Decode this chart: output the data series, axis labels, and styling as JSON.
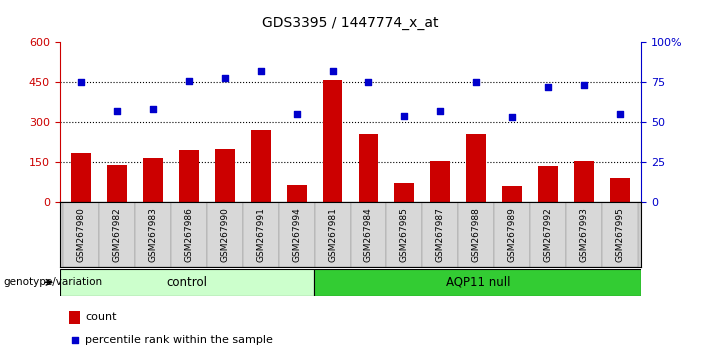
{
  "title": "GDS3395 / 1447774_x_at",
  "samples": [
    "GSM267980",
    "GSM267982",
    "GSM267983",
    "GSM267986",
    "GSM267990",
    "GSM267991",
    "GSM267994",
    "GSM267981",
    "GSM267984",
    "GSM267985",
    "GSM267987",
    "GSM267988",
    "GSM267989",
    "GSM267992",
    "GSM267993",
    "GSM267995"
  ],
  "counts": [
    185,
    138,
    165,
    195,
    200,
    270,
    65,
    460,
    255,
    70,
    155,
    255,
    60,
    135,
    155,
    90
  ],
  "percentile_ranks": [
    75,
    57,
    58,
    76,
    78,
    82,
    55,
    82,
    75,
    54,
    57,
    75,
    53,
    72,
    73,
    55
  ],
  "group_labels": [
    "control",
    "AQP11 null"
  ],
  "group_control_count": 7,
  "group_aqp_count": 9,
  "bar_color": "#cc0000",
  "dot_color": "#0000cc",
  "control_bg": "#ccffcc",
  "aqp_bg": "#33cc33",
  "yticks_left": [
    0,
    150,
    300,
    450,
    600
  ],
  "yticks_right": [
    0,
    25,
    50,
    75,
    100
  ],
  "ylim_left": [
    0,
    600
  ],
  "ylim_right": [
    0,
    100
  ],
  "legend_count_label": "count",
  "legend_pct_label": "percentile rank within the sample",
  "genotype_label": "genotype/variation"
}
